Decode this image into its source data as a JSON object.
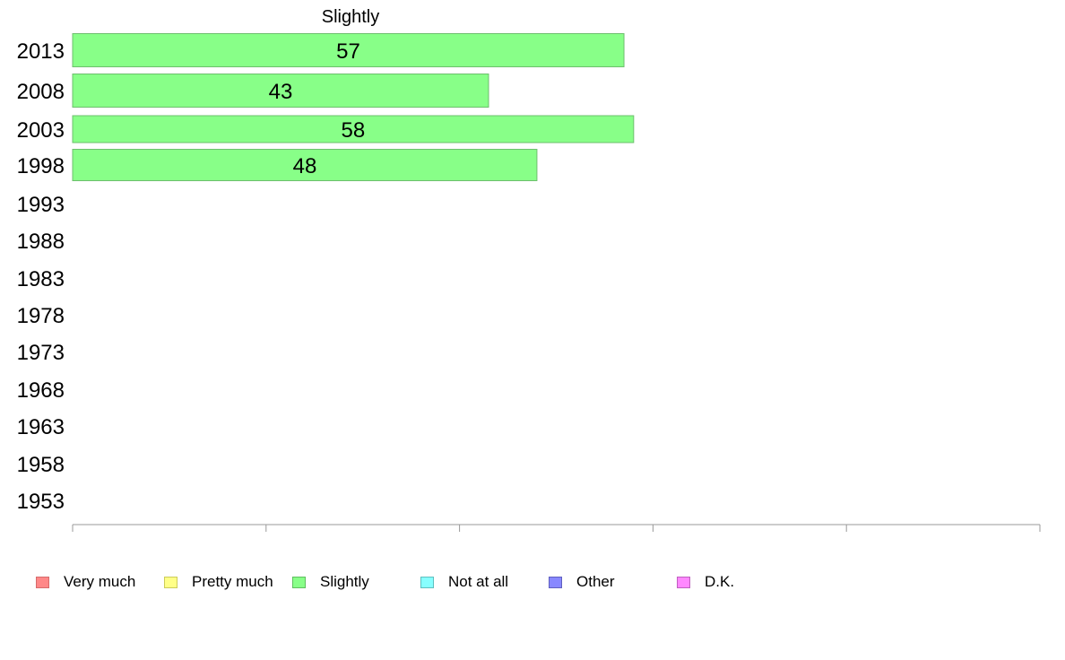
{
  "chart_data": {
    "type": "bar",
    "orientation": "horizontal",
    "title": "Slightly",
    "categories": [
      "2013",
      "2008",
      "2003",
      "1998",
      "1993",
      "1988",
      "1983",
      "1978",
      "1973",
      "1968",
      "1963",
      "1958",
      "1953"
    ],
    "series": [
      {
        "name": "Slightly",
        "values": [
          57,
          43,
          58,
          48,
          null,
          null,
          null,
          null,
          null,
          null,
          null,
          null,
          null
        ]
      }
    ],
    "xlim": [
      0,
      100
    ],
    "xticks": [
      0,
      20,
      40,
      60,
      80,
      100
    ],
    "grid": false,
    "legend_position": "bottom-left",
    "bar_color": "#88ff88",
    "bar_border_color": "#6dbf6d",
    "legend": [
      {
        "label": "Very much",
        "color": "#ff8888",
        "border": "#d66b6b"
      },
      {
        "label": "Pretty much",
        "color": "#ffff88",
        "border": "#cccc5a"
      },
      {
        "label": "Slightly",
        "color": "#88ff88",
        "border": "#5fbf5f"
      },
      {
        "label": "Not at all",
        "color": "#88ffff",
        "border": "#5fbfbf"
      },
      {
        "label": "Other",
        "color": "#8888ff",
        "border": "#5f5fbf"
      },
      {
        "label": "D.K.",
        "color": "#ff88ff",
        "border": "#bf5fbf"
      }
    ]
  }
}
